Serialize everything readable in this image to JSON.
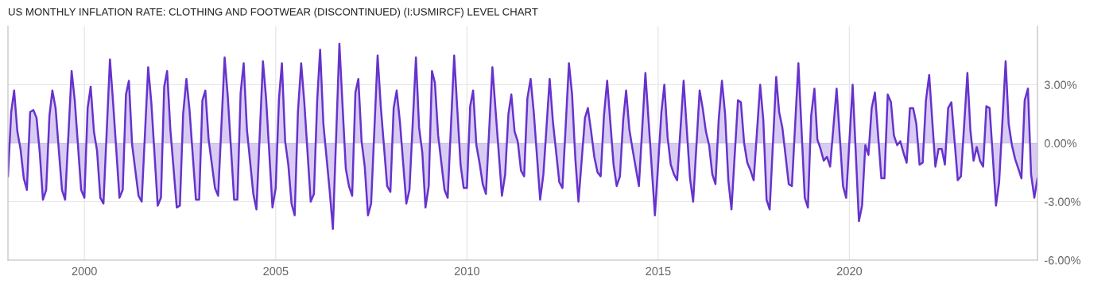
{
  "chart_data": {
    "type": "area",
    "title": "US MONTHLY INFLATION RATE: CLOTHING AND FOOTWEAR (DISCONTINUED) (I:USMIRCF) LEVEL CHART",
    "series": [
      {
        "color": "#6633cc",
        "x": [
          "1998-01",
          "1998-02",
          "1998-03",
          "1998-04",
          "1998-05",
          "1998-06",
          "1998-07",
          "1998-08",
          "1998-09",
          "1998-10",
          "1998-11",
          "1998-12",
          "1999-01",
          "1999-02",
          "1999-03",
          "1999-04",
          "1999-05",
          "1999-06",
          "1999-07",
          "1999-09",
          "1999-10",
          "1999-12",
          "2000-01",
          "2000-02",
          "2000-03",
          "2000-04",
          "2000-05",
          "2000-06",
          "2000-07",
          "2000-09",
          "2000-10",
          "2000-12",
          "2001-01",
          "2001-02",
          "2001-03",
          "2001-04",
          "2001-06",
          "2001-07",
          "2001-09",
          "2001-10",
          "2001-12",
          "2002-01",
          "2002-02",
          "2002-03",
          "2002-04",
          "2002-06",
          "2002-07",
          "2002-08",
          "2002-09",
          "2002-10",
          "2002-12",
          "2003-01",
          "2003-02",
          "2003-03",
          "2003-04",
          "2003-06",
          "2003-07",
          "2003-09",
          "2003-10",
          "2003-12",
          "2004-01",
          "2004-02",
          "2004-03",
          "2004-04",
          "2004-06",
          "2004-07",
          "2004-09",
          "2004-10",
          "2004-12",
          "2005-01",
          "2005-02",
          "2005-03",
          "2005-04",
          "2005-05",
          "2005-06",
          "2005-07",
          "2005-08",
          "2005-09",
          "2005-10",
          "2005-12",
          "2006-01",
          "2006-02",
          "2006-03",
          "2006-04",
          "2006-06",
          "2006-07",
          "2006-09",
          "2006-11",
          "2006-12",
          "2007-01",
          "2007-02",
          "2007-03",
          "2007-04",
          "2007-05",
          "2007-06",
          "2007-07",
          "2007-09",
          "2007-10",
          "2007-12",
          "2008-01",
          "2008-02",
          "2008-03",
          "2008-04",
          "2008-06",
          "2008-07",
          "2008-09",
          "2008-10",
          "2008-11",
          "2008-12",
          "2009-01",
          "2009-02",
          "2009-03",
          "2009-04",
          "2009-06",
          "2009-07",
          "2009-09",
          "2009-11",
          "2009-12",
          "2010-01",
          "2010-02",
          "2010-03",
          "2010-04",
          "2010-05",
          "2010-06",
          "2010-07",
          "2010-09",
          "2010-12",
          "2011-01",
          "2011-02",
          "2011-03",
          "2011-04",
          "2011-05",
          "2011-06",
          "2011-07",
          "2011-08",
          "2011-09",
          "2011-10",
          "2011-12",
          "2012-01",
          "2012-03",
          "2012-04",
          "2012-06",
          "2012-07",
          "2012-09",
          "2012-10",
          "2012-11",
          "2012-12",
          "2013-02",
          "2013-03",
          "2013-04",
          "2013-05",
          "2013-06",
          "2013-07",
          "2013-08",
          "2013-09",
          "2013-11",
          "2013-12",
          "2014-01",
          "2014-02",
          "2014-03",
          "2014-04",
          "2014-05",
          "2014-07",
          "2014-09",
          "2014-12",
          "2015-02",
          "2015-03",
          "2015-04",
          "2015-05",
          "2015-06",
          "2015-07",
          "2015-09",
          "2015-11",
          "2015-12",
          "2016-02",
          "2016-03",
          "2016-04",
          "2016-05",
          "2016-06",
          "2016-07",
          "2016-08",
          "2016-09",
          "2016-10",
          "2016-11",
          "2016-12",
          "2017-02",
          "2017-03",
          "2017-04",
          "2017-05",
          "2017-06",
          "2017-07",
          "2017-09",
          "2017-10",
          "2017-11",
          "2017-12",
          "2018-02",
          "2018-03",
          "2018-04",
          "2018-06",
          "2018-07",
          "2018-09",
          "2018-11",
          "2018-12",
          "2019-01",
          "2019-02",
          "2019-03",
          "2019-04",
          "2019-05",
          "2019-06",
          "2019-07",
          "2019-09",
          "2019-11",
          "2019-12",
          "2020-02",
          "2020-04",
          "2020-05",
          "2020-06",
          "2020-07",
          "2020-08",
          "2020-09",
          "2020-11",
          "2020-12",
          "2021-01",
          "2021-02",
          "2021-03",
          "2021-04",
          "2021-05",
          "2021-06",
          "2021-07",
          "2021-08",
          "2021-09",
          "2021-10",
          "2021-11",
          "2021-12",
          "2022-01",
          "2022-02",
          "2022-04",
          "2022-05",
          "2022-06",
          "2022-07",
          "2022-08",
          "2022-09",
          "2022-11",
          "2022-12",
          "2023-02",
          "2023-03",
          "2023-04",
          "2023-05",
          "2023-06",
          "2023-07",
          "2023-08",
          "2023-09",
          "2023-11",
          "2023-12",
          "2024-02",
          "2024-03",
          "2024-04",
          "2024-05",
          "2024-06",
          "2024-07",
          "2024-08",
          "2024-09",
          "2024-10",
          "2024-11",
          "2024-12"
        ],
        "values": [
          -1.7,
          1.6,
          2.7,
          0.6,
          -0.3,
          -1.8,
          -2.4,
          1.6,
          1.7,
          1.3,
          -0.5,
          -2.9,
          -2.4,
          1.4,
          2.7,
          1.8,
          -0.3,
          -2.4,
          -2.9,
          3.7,
          2.2,
          -2.4,
          -2.8,
          1.8,
          2.9,
          0.6,
          -0.4,
          -2.8,
          -3.1,
          4.3,
          2.1,
          -2.8,
          -2.4,
          2.5,
          3.2,
          -0.1,
          -2.7,
          -3.0,
          3.9,
          2.1,
          -3.2,
          -2.8,
          2.9,
          3.7,
          0.7,
          -3.3,
          -3.2,
          1.5,
          3.3,
          1.7,
          -2.9,
          -2.9,
          2.2,
          2.7,
          0.2,
          -2.3,
          -2.7,
          4.4,
          2.4,
          -2.9,
          -2.9,
          2.6,
          4.1,
          0.7,
          -2.6,
          -3.4,
          4.2,
          2.3,
          -3.3,
          -2.3,
          2.3,
          4.1,
          0.1,
          -1.1,
          -3.1,
          -3.7,
          1.6,
          4.1,
          2.1,
          -3.0,
          -2.6,
          2.2,
          4.8,
          1.0,
          -2.5,
          -4.4,
          5.1,
          -1.3,
          -2.2,
          -2.7,
          2.6,
          3.3,
          0.1,
          -1.2,
          -3.7,
          -3.1,
          4.5,
          1.9,
          -2.2,
          -2.5,
          1.8,
          2.7,
          1.1,
          -3.1,
          -2.4,
          4.4,
          0.8,
          -0.5,
          -3.3,
          -2.2,
          3.7,
          3.1,
          0.4,
          -2.4,
          -2.8,
          4.5,
          -1.1,
          -2.3,
          -2.3,
          1.9,
          2.7,
          -0.1,
          -1.0,
          -2.1,
          -2.6,
          3.9,
          -2.7,
          -1.6,
          1.5,
          2.5,
          0.6,
          0.1,
          -1.4,
          -1.7,
          2.3,
          3.3,
          1.6,
          -2.9,
          -1.6,
          3.3,
          1.1,
          -2.0,
          -2.3,
          4.1,
          2.5,
          -0.8,
          -3.0,
          1.3,
          1.8,
          0.6,
          -0.7,
          -1.5,
          -1.7,
          1.4,
          3.2,
          -1.1,
          -2.2,
          -1.7,
          1.2,
          2.7,
          0.7,
          -0.3,
          -2.2,
          3.6,
          -3.7,
          1.6,
          3.0,
          0.3,
          -1.1,
          -1.6,
          -1.9,
          3.2,
          -1.8,
          -3.0,
          2.7,
          1.8,
          0.6,
          -0.1,
          -1.6,
          -2.1,
          1.2,
          3.2,
          1.5,
          -1.9,
          -3.4,
          2.2,
          2.1,
          0.0,
          -1.0,
          -1.4,
          -1.9,
          3.0,
          1.2,
          -2.9,
          -3.4,
          3.4,
          1.6,
          0.8,
          -2.1,
          -2.2,
          4.1,
          -2.8,
          -3.3,
          1.4,
          2.8,
          0.2,
          -0.3,
          -0.9,
          -0.7,
          -1.2,
          2.8,
          -2.2,
          -2.8,
          3.0,
          -4.0,
          -3.2,
          -0.1,
          -0.6,
          1.8,
          2.6,
          -1.8,
          -1.8,
          2.5,
          2.1,
          0.4,
          -0.1,
          0.1,
          -0.5,
          -1.0,
          1.8,
          1.8,
          1.0,
          -1.1,
          -1.0,
          2.2,
          3.5,
          -1.2,
          -0.3,
          -0.3,
          -1.1,
          1.8,
          2.1,
          -1.9,
          -1.7,
          3.6,
          0.7,
          -0.9,
          -0.2,
          -0.9,
          -1.2,
          1.9,
          1.8,
          -3.2,
          -2.0,
          4.2,
          1.0,
          -0.1,
          -0.8,
          -1.3,
          -1.8,
          2.2,
          2.8,
          -1.6,
          -2.8,
          -1.8
        ]
      }
    ],
    "xlim": [
      "1998-01",
      "2024-12"
    ],
    "xticks": [
      {
        "value": "2000",
        "label": "2000"
      },
      {
        "value": "2005",
        "label": "2005"
      },
      {
        "value": "2010",
        "label": "2010"
      },
      {
        "value": "2015",
        "label": "2015"
      },
      {
        "value": "2020",
        "label": "2020"
      }
    ],
    "ylim": [
      -6,
      6
    ],
    "yticks": [
      {
        "value": -6,
        "label": "-6.00%"
      },
      {
        "value": -3,
        "label": "-3.00%"
      },
      {
        "value": 0,
        "label": "0.00%"
      },
      {
        "value": 3,
        "label": "3.00%"
      }
    ],
    "grid": true,
    "legend": false
  }
}
